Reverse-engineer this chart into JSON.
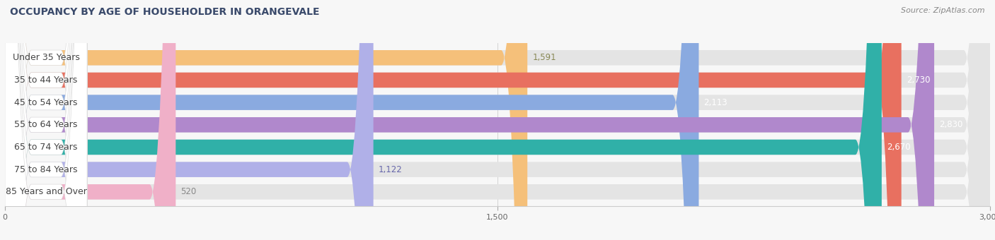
{
  "title": "OCCUPANCY BY AGE OF HOUSEHOLDER IN ORANGEVALE",
  "source": "Source: ZipAtlas.com",
  "categories": [
    "Under 35 Years",
    "35 to 44 Years",
    "45 to 54 Years",
    "55 to 64 Years",
    "65 to 74 Years",
    "75 to 84 Years",
    "85 Years and Over"
  ],
  "values": [
    1591,
    2730,
    2113,
    2830,
    2670,
    1122,
    520
  ],
  "bar_colors": [
    "#f5c07a",
    "#e87060",
    "#8aaae0",
    "#b088cc",
    "#30b0a8",
    "#b0b0e8",
    "#f0b0c8"
  ],
  "label_colors": [
    "#333333",
    "#333333",
    "#333333",
    "#333333",
    "#333333",
    "#333333",
    "#333333"
  ],
  "value_colors": [
    "#888855",
    "#ffffff",
    "#ffffff",
    "#ffffff",
    "#ffffff",
    "#6666aa",
    "#888888"
  ],
  "xlim": [
    0,
    3000
  ],
  "xticks": [
    0,
    1500,
    3000
  ],
  "background_color": "#f7f7f7",
  "bar_bg_color": "#e4e4e4",
  "title_fontsize": 10,
  "source_fontsize": 8,
  "label_fontsize": 9,
  "value_fontsize": 8.5,
  "bar_height": 0.68,
  "figsize": [
    14.06,
    3.4
  ]
}
